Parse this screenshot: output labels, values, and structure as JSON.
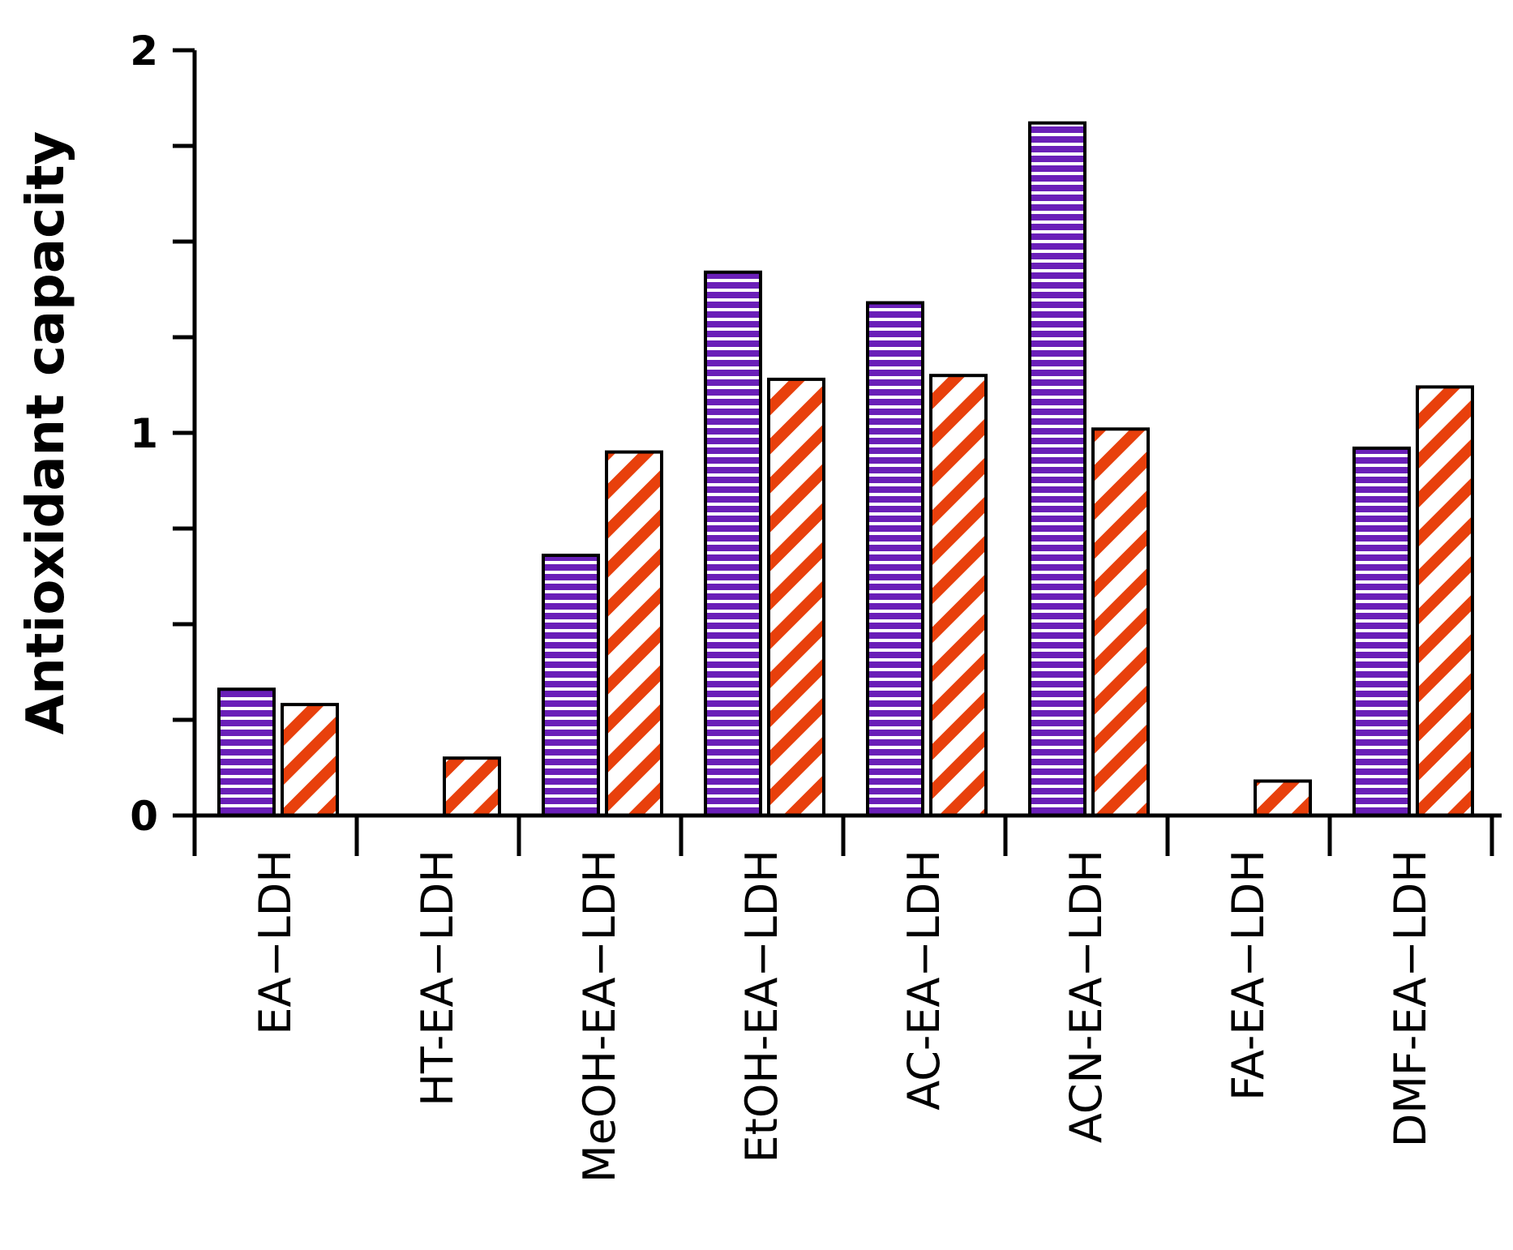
{
  "chart_data": {
    "type": "bar",
    "title": "",
    "xlabel": "",
    "ylabel": "Antioxidant capacity",
    "ylim": [
      0,
      2
    ],
    "y_ticks": [
      {
        "value": 0,
        "label": "0"
      },
      {
        "value": 1,
        "label": "1"
      },
      {
        "value": 2,
        "label": "2"
      }
    ],
    "y_minor_tick_step": 0.25,
    "categories": [
      "EA−LDH",
      "HT-EA−LDH",
      "MeOH-EA−LDH",
      "EtOH-EA−LDH",
      "AC-EA−LDH",
      "ACN-EA−LDH",
      "FA-EA−LDH",
      "DMF-EA−LDH"
    ],
    "series": [
      {
        "pattern": "horizontal-stripes",
        "color": "#6A1FB8",
        "values": [
          0.33,
          null,
          0.68,
          1.42,
          1.34,
          1.81,
          null,
          0.96
        ]
      },
      {
        "pattern": "diagonal-stripes",
        "color": "#E8400C",
        "values": [
          0.29,
          0.15,
          0.95,
          1.14,
          1.15,
          1.01,
          0.09,
          1.12
        ]
      }
    ],
    "grid": false,
    "legend": "none"
  }
}
